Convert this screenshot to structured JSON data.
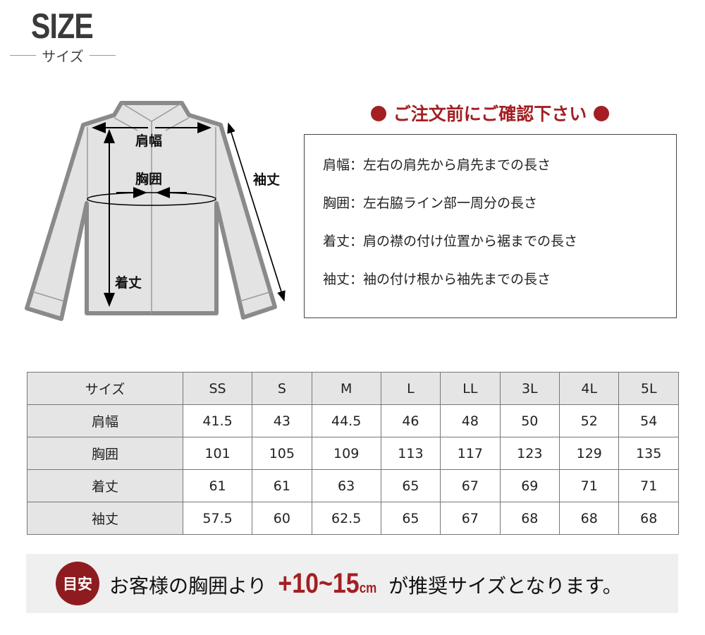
{
  "header": {
    "title": "SIZE",
    "subtitle": "サイズ"
  },
  "diagram": {
    "labels": {
      "shoulder": "肩幅",
      "chest": "胸囲",
      "length": "着丈",
      "sleeve": "袖丈"
    }
  },
  "notice": {
    "heading": "ご注文前にご確認下さい",
    "lines": [
      "肩幅：左右の肩先から肩先までの長さ",
      "胸囲：左右脇ライン部一周分の長さ",
      "着丈：肩の襟の付け位置から裾までの長さ",
      "袖丈：袖の付け根から袖先までの長さ"
    ]
  },
  "table": {
    "header": [
      "サイズ",
      "SS",
      "S",
      "M",
      "L",
      "LL",
      "3L",
      "4L",
      "5L"
    ],
    "rows": [
      [
        "肩幅",
        "41.5",
        "43",
        "44.5",
        "46",
        "48",
        "50",
        "52",
        "54"
      ],
      [
        "胸囲",
        "101",
        "105",
        "109",
        "113",
        "117",
        "123",
        "129",
        "135"
      ],
      [
        "着丈",
        "61",
        "61",
        "63",
        "65",
        "67",
        "69",
        "71",
        "71"
      ],
      [
        "袖丈",
        "57.5",
        "60",
        "62.5",
        "65",
        "67",
        "68",
        "68",
        "68"
      ]
    ]
  },
  "banner": {
    "badge": "目安",
    "prefix": "お客様の胸囲より",
    "range": "+10~15",
    "unit": "cm",
    "suffix": "が推奨サイズとなります。"
  },
  "colors": {
    "accent": "#a31f23",
    "badge": "#8e1c1f",
    "shirt_fill": "#e3e3e3",
    "shirt_stroke": "#8a8a8a"
  }
}
